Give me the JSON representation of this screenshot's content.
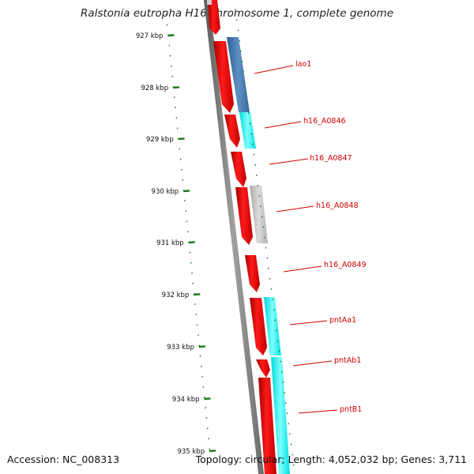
{
  "title": "Ralstonia eutropha H16 chromosome 1, complete genome",
  "footer": {
    "accession": "Accession: NC_008313",
    "summary": "Topology: circular; Length: 4,052,032 bp; Genes: 3,711"
  },
  "ticks": [
    "927 kbp",
    "928 kbp",
    "929 kbp",
    "930 kbp",
    "931 kbp",
    "932 kbp",
    "933 kbp",
    "934 kbp",
    "935 kbp"
  ],
  "gene_labels": [
    "lao1",
    "h16_A0846",
    "h16_A0847",
    "h16_A0848",
    "h16_A0849",
    "pntAa1",
    "pntAb1",
    "pntB1"
  ],
  "colors": {
    "cds": "#ff0000",
    "backbone": "#808080",
    "tick": "#1a7a1a",
    "label": "#d00000",
    "steelblue": "#4a7fb5",
    "cyan": "#00ffff",
    "grey_feature": "#bdbdbd"
  }
}
